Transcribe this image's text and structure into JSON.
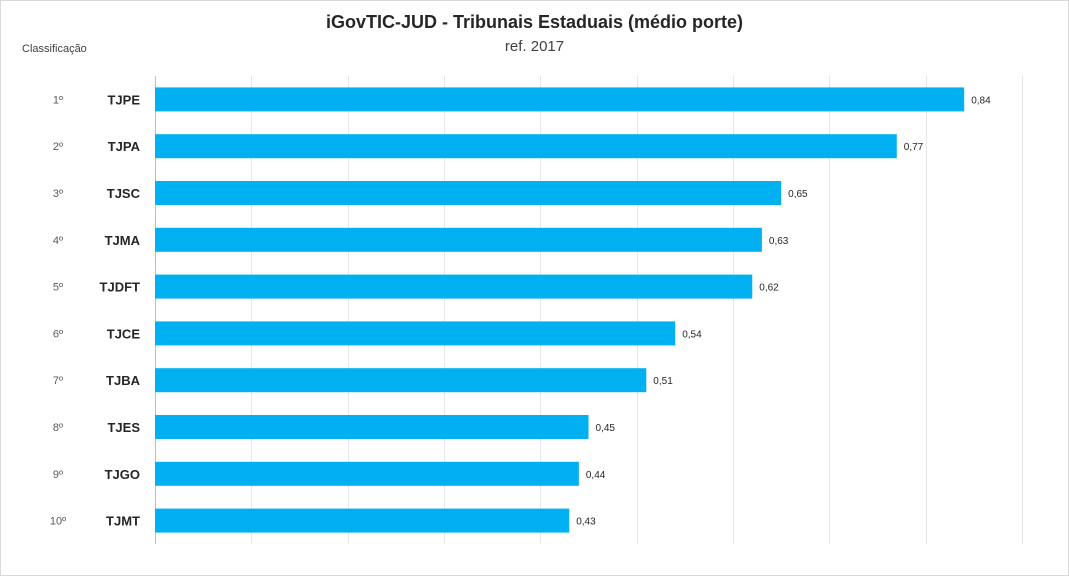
{
  "chart_data": {
    "type": "bar",
    "orientation": "horizontal",
    "title": "iGovTIC-JUD  - Tribunais  Estaduais  (médio porte)",
    "subtitle": "ref. 2017",
    "rank_header": "Classificação",
    "ranks": [
      "1º",
      "2º",
      "3º",
      "4º",
      "5º",
      "6º",
      "7º",
      "8º",
      "9º",
      "10º"
    ],
    "categories": [
      "TJPE",
      "TJPA",
      "TJSC",
      "TJMA",
      "TJDFT",
      "TJCE",
      "TJBA",
      "TJES",
      "TJGO",
      "TJMT"
    ],
    "values": [
      0.84,
      0.77,
      0.65,
      0.63,
      0.62,
      0.54,
      0.51,
      0.45,
      0.44,
      0.43
    ],
    "value_labels": [
      "0,84",
      "0,77",
      "0,65",
      "0,63",
      "0,62",
      "0,54",
      "0,51",
      "0,45",
      "0,44",
      "0,43"
    ],
    "xlim": [
      0,
      0.9
    ],
    "grid": true,
    "bar_color": "#00b0f0",
    "grid_color": "#e6e6e6"
  }
}
